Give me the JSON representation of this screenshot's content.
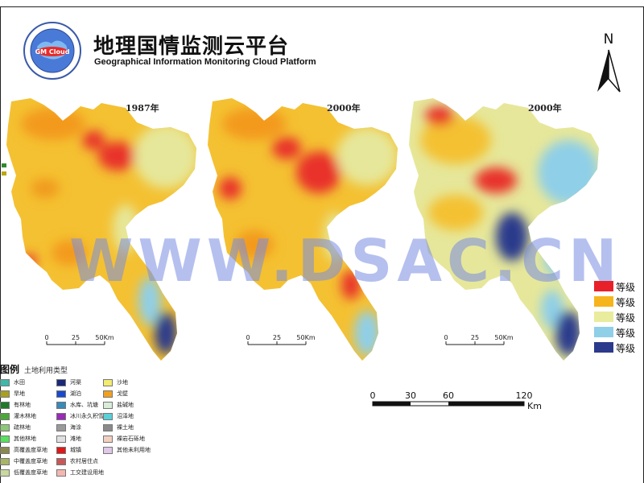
{
  "header": {
    "title_cn": "地理国情监测云平台",
    "title_en": "Geographical Information Monitoring Cloud Platform",
    "logo_text": "GM Cloud"
  },
  "north_arrow": {
    "label": "N"
  },
  "maps": [
    {
      "year_label": "1987年",
      "scale_labels": [
        "0",
        "25",
        "50Km"
      ]
    },
    {
      "year_label": "2000年",
      "scale_labels": [
        "0",
        "25",
        "50Km"
      ]
    },
    {
      "year_label": "2000年",
      "scale_labels": [
        "0",
        "25",
        "50Km"
      ]
    }
  ],
  "watermark": "WWW.DSAC.CN",
  "class_legend": [
    {
      "label": "等级",
      "color": "#e8202a"
    },
    {
      "label": "等级",
      "color": "#f6b51c"
    },
    {
      "label": "等级",
      "color": "#e8ec9c"
    },
    {
      "label": "等级",
      "color": "#8fcfe8"
    },
    {
      "label": "等级",
      "color": "#2c3a8c"
    }
  ],
  "landuse_legend": {
    "title": "图例",
    "subtitle": "土地利用类型",
    "items": [
      {
        "label": "水田",
        "color": "#3fb8a8"
      },
      {
        "label": "旱地",
        "color": "#a8a020"
      },
      {
        "label": "有林地",
        "color": "#1f7a2a"
      },
      {
        "label": "灌木林地",
        "color": "#4aa838"
      },
      {
        "label": "疏林地",
        "color": "#8cc878"
      },
      {
        "label": "其他林地",
        "color": "#58e060"
      },
      {
        "label": "高覆盖度草地",
        "color": "#8a8a50"
      },
      {
        "label": "中覆盖度草地",
        "color": "#a8b468"
      },
      {
        "label": "低覆盖度草地",
        "color": "#c8d8a0"
      },
      {
        "label": "河渠",
        "color": "#1a2a7a"
      },
      {
        "label": "湖泊",
        "color": "#1a4ad0"
      },
      {
        "label": "水库、坑塘",
        "color": "#3a8ab8"
      },
      {
        "label": "冰川永久积雪",
        "color": "#9a2ab8"
      },
      {
        "label": "海涂",
        "color": "#9a9a9a"
      },
      {
        "label": "滩地",
        "color": "#e0e0e0"
      },
      {
        "label": "城镇",
        "color": "#e01818"
      },
      {
        "label": "农村居住点",
        "color": "#c85858"
      },
      {
        "label": "工交建设用地",
        "color": "#f2b8b0"
      },
      {
        "label": "沙地",
        "color": "#f2ec70"
      },
      {
        "label": "戈壁",
        "color": "#f0a020"
      },
      {
        "label": "盐碱地",
        "color": "#d8ecd8"
      },
      {
        "label": "沼泽地",
        "color": "#5ad0d8"
      },
      {
        "label": "裸土地",
        "color": "#8a8a8a"
      },
      {
        "label": "裸岩石砾地",
        "color": "#f2d0c0"
      },
      {
        "label": "其他未利用地",
        "color": "#e0c8e8"
      }
    ]
  },
  "scale_bar": {
    "ticks": [
      "0",
      "30",
      "60",
      "120"
    ],
    "unit": "Km"
  }
}
